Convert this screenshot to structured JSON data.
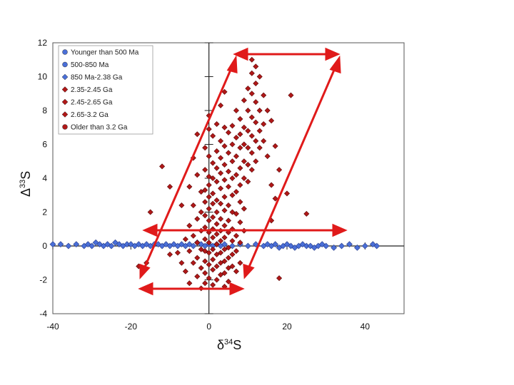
{
  "chart_data": {
    "type": "scatter",
    "title": "",
    "xlabel": {
      "symbol": "δ",
      "sup": "34",
      "base": "S"
    },
    "ylabel": {
      "symbol": "Δ",
      "sup": "33",
      "base": "S"
    },
    "xlim": [
      -40,
      50
    ],
    "ylim": [
      -4,
      12
    ],
    "xticks": [
      "-40",
      "-20",
      "0",
      "20",
      "40"
    ],
    "yticks": [
      "-4",
      "-2",
      "0",
      "2",
      "4",
      "6",
      "8",
      "10",
      "12"
    ],
    "legend_position": "top-left",
    "legend": [
      {
        "label": "Younger than 500 Ma",
        "color": "#4a6fd8",
        "marker": "circle"
      },
      {
        "label": "500-850 Ma",
        "color": "#4a6fd8",
        "marker": "circle"
      },
      {
        "label": "850 Ma-2.38 Ga",
        "color": "#4a6fd8",
        "marker": "diamond"
      },
      {
        "label": "2.35-2.45 Ga",
        "color": "#b01818",
        "marker": "diamond"
      },
      {
        "label": "2.45-2.65 Ga",
        "color": "#b01818",
        "marker": "diamond"
      },
      {
        "label": "2.65-3.2 Ga",
        "color": "#b01818",
        "marker": "diamond"
      },
      {
        "label": "Older than 3.2 Ga",
        "color": "#b01818",
        "marker": "circle"
      }
    ],
    "series": [
      {
        "group": "blue (younger than 2.38 Ga)",
        "color": "#4a6fd8",
        "points": [
          [
            -40,
            0.1
          ],
          [
            -38,
            0.1
          ],
          [
            -36,
            0.0
          ],
          [
            -34,
            0.1
          ],
          [
            -32,
            0.0
          ],
          [
            -31,
            0.1
          ],
          [
            -30,
            0.0
          ],
          [
            -29,
            0.2
          ],
          [
            -28,
            0.1
          ],
          [
            -27,
            0.0
          ],
          [
            -26,
            0.1
          ],
          [
            -25,
            0.0
          ],
          [
            -24,
            0.2
          ],
          [
            -23,
            0.1
          ],
          [
            -22,
            0.0
          ],
          [
            -21,
            0.1
          ],
          [
            -20,
            0.1
          ],
          [
            -19,
            0.0
          ],
          [
            -18,
            0.1
          ],
          [
            -17,
            0.0
          ],
          [
            -16,
            0.1
          ],
          [
            -15,
            0.0
          ],
          [
            -14,
            0.1
          ],
          [
            -13,
            0.1
          ],
          [
            -12,
            0.0
          ],
          [
            -11,
            0.1
          ],
          [
            -10,
            0.0
          ],
          [
            -9,
            0.1
          ],
          [
            -8,
            0.0
          ],
          [
            -7,
            0.1
          ],
          [
            -6,
            0.0
          ],
          [
            -5,
            0.1
          ],
          [
            -4,
            0.0
          ],
          [
            -3,
            0.2
          ],
          [
            -2,
            0.1
          ],
          [
            -1,
            0.0
          ],
          [
            0,
            0.1
          ],
          [
            1,
            0.0
          ],
          [
            2,
            0.1
          ],
          [
            3,
            0.0
          ],
          [
            4,
            0.1
          ],
          [
            6,
            0.0
          ],
          [
            8,
            0.1
          ],
          [
            10,
            0.0
          ],
          [
            12,
            0.1
          ],
          [
            14,
            0.0
          ],
          [
            15,
            0.1
          ],
          [
            16,
            0.0
          ],
          [
            17,
            0.1
          ],
          [
            18,
            -0.1
          ],
          [
            19,
            0.0
          ],
          [
            20,
            0.1
          ],
          [
            21,
            0.0
          ],
          [
            22,
            -0.1
          ],
          [
            23,
            0.0
          ],
          [
            24,
            0.1
          ],
          [
            25,
            0.0
          ],
          [
            26,
            0.0
          ],
          [
            27,
            -0.1
          ],
          [
            28,
            0.0
          ],
          [
            29,
            0.1
          ],
          [
            30,
            0.0
          ],
          [
            32,
            -0.1
          ],
          [
            34,
            0.0
          ],
          [
            36,
            0.1
          ],
          [
            38,
            -0.1
          ],
          [
            40,
            0.0
          ],
          [
            42,
            0.1
          ],
          [
            43,
            0.0
          ]
        ]
      },
      {
        "group": "red (older than 2.35 Ga)",
        "color": "#b01818",
        "points": [
          [
            -12,
            4.7
          ],
          [
            -10,
            3.5
          ],
          [
            -10,
            -0.5
          ],
          [
            -8,
            -0.4
          ],
          [
            -7,
            2.4
          ],
          [
            -7,
            -1.0
          ],
          [
            -6,
            0.4
          ],
          [
            -6,
            -1.5
          ],
          [
            -5,
            3.5
          ],
          [
            -5,
            1.2
          ],
          [
            -5,
            -0.3
          ],
          [
            -5,
            -2.2
          ],
          [
            -4,
            5.2
          ],
          [
            -4,
            2.4
          ],
          [
            -4,
            0.6
          ],
          [
            -4,
            -1.0
          ],
          [
            -3,
            6.6
          ],
          [
            -3,
            4.2
          ],
          [
            -3,
            1.6
          ],
          [
            -3,
            0.2
          ],
          [
            -3,
            -0.7
          ],
          [
            -3,
            -1.8
          ],
          [
            -2,
            3.2
          ],
          [
            -2,
            2.0
          ],
          [
            -2,
            0.9
          ],
          [
            -2,
            -0.2
          ],
          [
            -2,
            -1.3
          ],
          [
            -2,
            -2.5
          ],
          [
            -1,
            5.8
          ],
          [
            -1,
            4.5
          ],
          [
            -1,
            3.3
          ],
          [
            -1,
            2.6
          ],
          [
            -1,
            1.8
          ],
          [
            -1,
            1.1
          ],
          [
            -1,
            0.4
          ],
          [
            -1,
            -0.3
          ],
          [
            -1,
            -0.9
          ],
          [
            -1,
            -1.6
          ],
          [
            -1,
            -2.2
          ],
          [
            0,
            7.7
          ],
          [
            0,
            6.9
          ],
          [
            0,
            5.3
          ],
          [
            0,
            4.1
          ],
          [
            0,
            3.6
          ],
          [
            0,
            2.9
          ],
          [
            0,
            2.2
          ],
          [
            0,
            1.5
          ],
          [
            0,
            0.8
          ],
          [
            0,
            0.2
          ],
          [
            0,
            -0.4
          ],
          [
            0,
            -1.1
          ],
          [
            0,
            -1.9
          ],
          [
            1,
            6.5
          ],
          [
            1,
            4.9
          ],
          [
            1,
            4.0
          ],
          [
            1,
            3.1
          ],
          [
            1,
            2.5
          ],
          [
            1,
            1.7
          ],
          [
            1,
            1.0
          ],
          [
            1,
            0.5
          ],
          [
            1,
            -0.2
          ],
          [
            1,
            -0.8
          ],
          [
            1,
            -1.4
          ],
          [
            1,
            -2.3
          ],
          [
            2,
            7.2
          ],
          [
            2,
            5.6
          ],
          [
            2,
            4.6
          ],
          [
            2,
            3.8
          ],
          [
            2,
            2.7
          ],
          [
            2,
            2.0
          ],
          [
            2,
            1.3
          ],
          [
            2,
            0.7
          ],
          [
            2,
            0.1
          ],
          [
            2,
            -0.5
          ],
          [
            2,
            -1.2
          ],
          [
            2,
            -2.0
          ],
          [
            3,
            8.3
          ],
          [
            3,
            6.2
          ],
          [
            3,
            5.2
          ],
          [
            3,
            4.3
          ],
          [
            3,
            3.4
          ],
          [
            3,
            2.5
          ],
          [
            3,
            1.6
          ],
          [
            3,
            0.9
          ],
          [
            3,
            0.3
          ],
          [
            3,
            -0.4
          ],
          [
            3,
            -1.0
          ],
          [
            3,
            -1.7
          ],
          [
            4,
            9.1
          ],
          [
            4,
            7.0
          ],
          [
            4,
            5.9
          ],
          [
            4,
            4.8
          ],
          [
            4,
            3.9
          ],
          [
            4,
            2.9
          ],
          [
            4,
            2.1
          ],
          [
            4,
            1.2
          ],
          [
            4,
            0.5
          ],
          [
            4,
            -0.2
          ],
          [
            4,
            -0.9
          ],
          [
            4,
            -1.6
          ],
          [
            4,
            -2.4
          ],
          [
            5,
            6.7
          ],
          [
            5,
            5.5
          ],
          [
            5,
            4.4
          ],
          [
            5,
            3.5
          ],
          [
            5,
            2.4
          ],
          [
            5,
            1.5
          ],
          [
            5,
            0.8
          ],
          [
            5,
            -0.1
          ],
          [
            5,
            -0.7
          ],
          [
            5,
            -1.3
          ],
          [
            5,
            -2.1
          ],
          [
            6,
            7.1
          ],
          [
            6,
            6.0
          ],
          [
            6,
            5.0
          ],
          [
            6,
            4.0
          ],
          [
            6,
            3.0
          ],
          [
            6,
            2.0
          ],
          [
            6,
            1.0
          ],
          [
            6,
            0.3
          ],
          [
            6,
            -0.5
          ],
          [
            6,
            -1.2
          ],
          [
            7,
            8.0
          ],
          [
            7,
            6.4
          ],
          [
            7,
            5.3
          ],
          [
            7,
            4.2
          ],
          [
            7,
            3.2
          ],
          [
            7,
            1.9
          ],
          [
            7,
            0.6
          ],
          [
            7,
            -0.3
          ],
          [
            7,
            -1.5
          ],
          [
            8,
            7.5
          ],
          [
            8,
            6.6
          ],
          [
            8,
            5.8
          ],
          [
            8,
            4.6
          ],
          [
            8,
            3.6
          ],
          [
            8,
            2.6
          ],
          [
            8,
            1.4
          ],
          [
            8,
            0.2
          ],
          [
            8,
            -1.0
          ],
          [
            9,
            8.6
          ],
          [
            9,
            7.0
          ],
          [
            9,
            6.0
          ],
          [
            9,
            5.0
          ],
          [
            9,
            4.0
          ],
          [
            9,
            2.2
          ],
          [
            9,
            0.9
          ],
          [
            10,
            9.3
          ],
          [
            10,
            8.0
          ],
          [
            10,
            6.8
          ],
          [
            10,
            5.8
          ],
          [
            10,
            4.8
          ],
          [
            10,
            3.8
          ],
          [
            11,
            11.0
          ],
          [
            11,
            10.2
          ],
          [
            11,
            9.0
          ],
          [
            11,
            7.6
          ],
          [
            11,
            6.5
          ],
          [
            11,
            5.5
          ],
          [
            11,
            4.5
          ],
          [
            12,
            10.6
          ],
          [
            12,
            9.6
          ],
          [
            12,
            8.5
          ],
          [
            12,
            7.3
          ],
          [
            12,
            6.2
          ],
          [
            12,
            5.0
          ],
          [
            13,
            10.0
          ],
          [
            13,
            8.0
          ],
          [
            13,
            6.8
          ],
          [
            13,
            5.8
          ],
          [
            14,
            8.9
          ],
          [
            14,
            7.2
          ],
          [
            14,
            6.2
          ],
          [
            15,
            8.0
          ],
          [
            15,
            5.3
          ],
          [
            16,
            7.4
          ],
          [
            16,
            3.6
          ],
          [
            16,
            1.5
          ],
          [
            17,
            5.9
          ],
          [
            17,
            2.8
          ],
          [
            18,
            4.5
          ],
          [
            18,
            -1.9
          ],
          [
            20,
            3.1
          ],
          [
            21,
            8.9
          ],
          [
            25,
            1.9
          ],
          [
            -16,
            -1.0
          ],
          [
            -18,
            -1.2
          ],
          [
            -15,
            2.0
          ]
        ]
      }
    ]
  }
}
